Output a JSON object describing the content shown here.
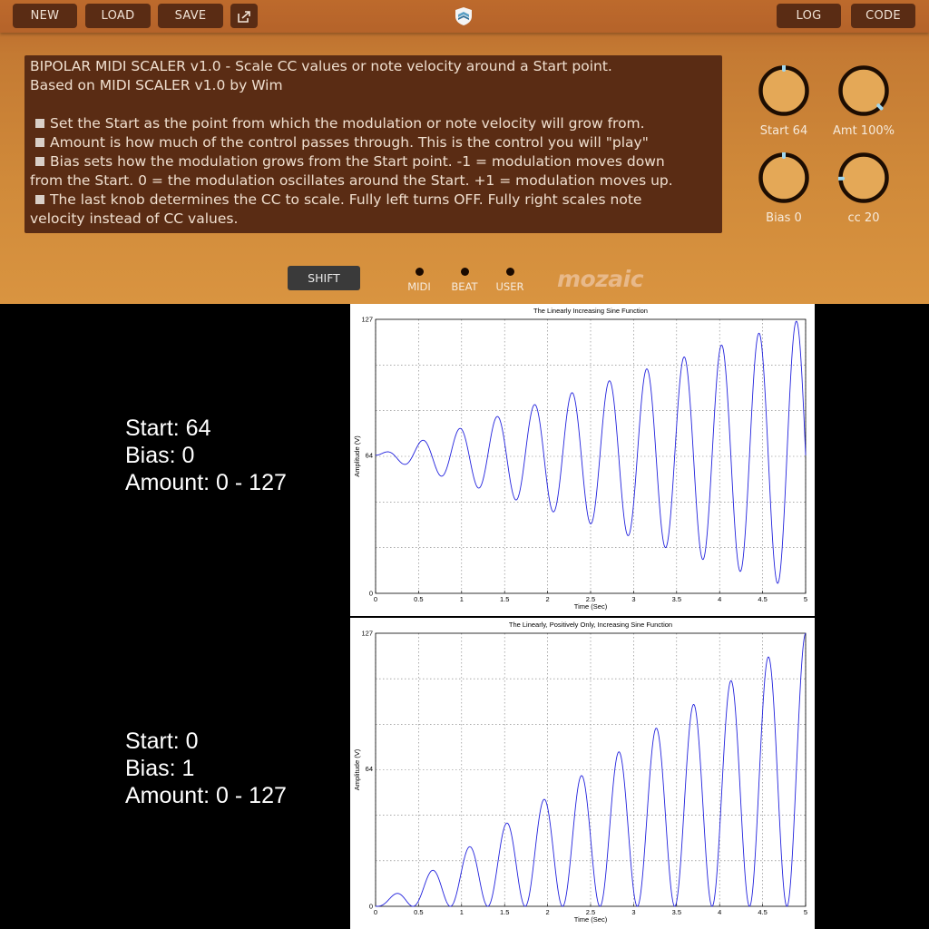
{
  "toolbar": {
    "new_label": "NEW",
    "load_label": "LOAD",
    "save_label": "SAVE",
    "log_label": "LOG",
    "code_label": "CODE"
  },
  "description": {
    "line1": "BIPOLAR MIDI SCALER v1.0 - Scale CC values or note velocity around a Start point.",
    "line2": "Based on MIDI SCALER v1.0 by Wim",
    "b1": "Set the Start as the point from which the modulation or note velocity will grow from.",
    "b2": "Amount is how much of the control passes through. This is the control you will \"play\"",
    "b3a": "Bias sets how the modulation grows from the Start point. -1 = modulation moves down",
    "b3b": "from the Start. 0 = the modulation oscillates around the Start.  +1 = modulation moves up.",
    "b4a": "The last knob determines the CC to scale. Fully left turns OFF. Fully right scales note",
    "b4b": "velocity instead of CC values."
  },
  "knobs": [
    {
      "label": "Start 64",
      "value": 0.5
    },
    {
      "label": "Amt 100%",
      "value": 1.0
    },
    {
      "label": "Bias 0",
      "value": 0.5
    },
    {
      "label": "cc 20",
      "value": 0.16
    }
  ],
  "colors": {
    "knob_fill": "#e4a857",
    "knob_ring": "#1d0d02",
    "knob_marker": "#9fd6ee",
    "plot_line": "#2222dd"
  },
  "shift_label": "SHIFT",
  "leds": [
    "MIDI",
    "BEAT",
    "USER"
  ],
  "brand": "mozaic",
  "logo_icon": "shield-logo-icon",
  "share_icon": "share-icon",
  "examples": [
    {
      "start": "Start: 64",
      "bias": "Bias: 0",
      "amount": "Amount: 0 - 127"
    },
    {
      "start": "Start: 0",
      "bias": "Bias: 1",
      "amount": "Amount: 0 - 127"
    }
  ],
  "chart_data": [
    {
      "type": "line",
      "title": "The Linearly Increasing Sine Function",
      "xlabel": "Time (Sec)",
      "ylabel": "Amplitude (V)",
      "xlim": [
        0,
        5
      ],
      "ylim": [
        0,
        127
      ],
      "xticks": [
        "0",
        "0.5",
        "1",
        "1.5",
        "2",
        "2.5",
        "3",
        "3.5",
        "4",
        "4.5",
        "5"
      ],
      "yticks": [
        "0",
        "64",
        "127"
      ],
      "grid": true,
      "function": {
        "form": "offset + (t/5) * A * sin(2*pi*f*t)",
        "offset": 64,
        "amplitude": 63.5,
        "frequency_hz": 2.3
      }
    },
    {
      "type": "line",
      "title": "The Linearly, Positively Only, Increasing Sine Function",
      "xlabel": "Time (Sec)",
      "ylabel": "Amplitude (V)",
      "xlim": [
        0,
        5
      ],
      "ylim": [
        0,
        127
      ],
      "xticks": [
        "0",
        "0.5",
        "1",
        "1.5",
        "2",
        "2.5",
        "3",
        "3.5",
        "4",
        "4.5",
        "5"
      ],
      "yticks": [
        "0",
        "64",
        "127"
      ],
      "grid": true,
      "function": {
        "form": "(t/5) * A * (1 - cos(2*pi*f*t)) / 2",
        "offset": 0,
        "amplitude": 127,
        "frequency_hz": 2.3
      }
    }
  ]
}
